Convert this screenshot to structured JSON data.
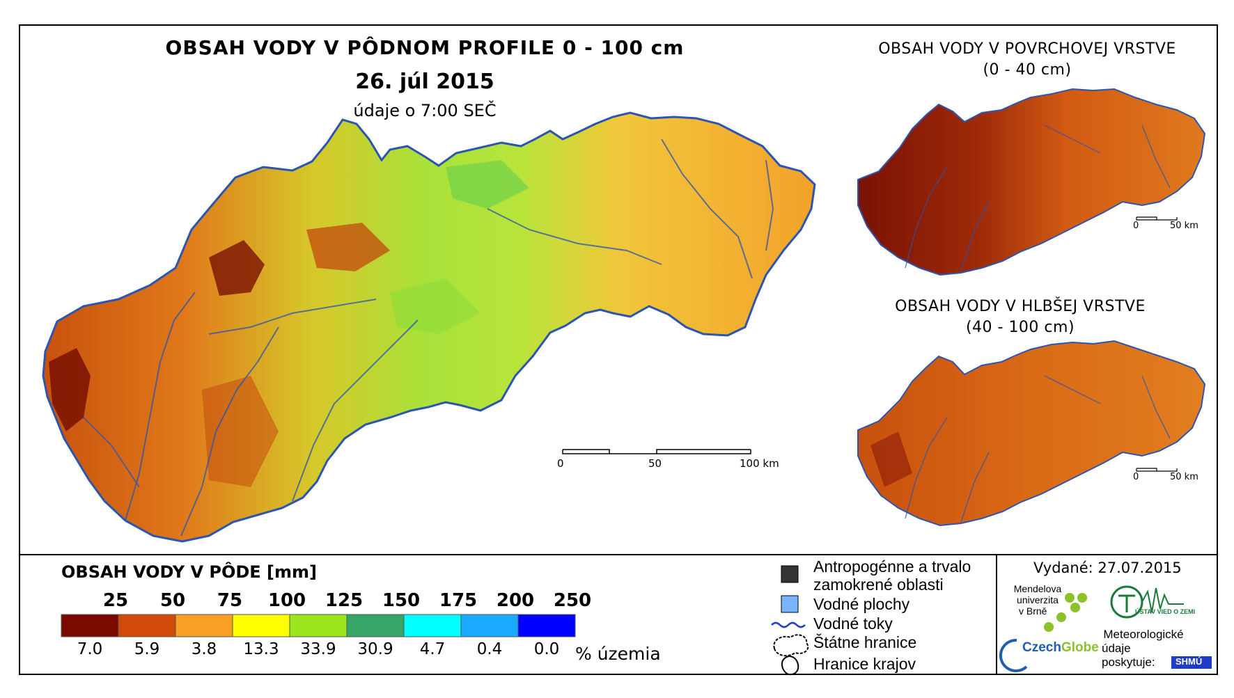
{
  "main_map": {
    "title": "OBSAH VODY V PÔDNOM PROFILE 0 - 100 cm",
    "date": "26. júl 2015",
    "time": "údaje o 7:00 SEČ",
    "scale": {
      "labels": [
        "0",
        "50",
        "100 km"
      ]
    }
  },
  "surface_map": {
    "title_line1": "OBSAH VODY V POVRCHOVEJ VRSTVE",
    "title_line2": "(0 - 40 cm)",
    "scale": {
      "labels": [
        "0",
        "50 km"
      ]
    }
  },
  "deep_map": {
    "title_line1": "OBSAH VODY V HLBŠEJ VRSTVE",
    "title_line2": "(40 - 100 cm)",
    "scale": {
      "labels": [
        "0",
        "50 km"
      ]
    }
  },
  "legend": {
    "title": "OBSAH VODY V PÔDE [mm]",
    "class_labels": [
      "25",
      "50",
      "75",
      "100",
      "125",
      "150",
      "175",
      "200",
      "250"
    ],
    "colors": [
      "#7a0a00",
      "#d24a0a",
      "#f7a024",
      "#ffff00",
      "#9be61e",
      "#37a567",
      "#00ffff",
      "#19aaff",
      "#0000ff"
    ],
    "percentages": [
      "7.0",
      "5.9",
      "3.8",
      "13.3",
      "33.9",
      "30.9",
      "4.7",
      "0.4",
      "0.0"
    ],
    "percent_unit": "% územia"
  },
  "symbols": {
    "anthropogenic_line1": "Antropogénne a trvalo",
    "anthropogenic_line2": "zamokrené oblasti",
    "water_areas": "Vodné plochy",
    "rivers": "Vodné toky",
    "state_border": "Štátne hranice",
    "region_border": "Hranice krajov"
  },
  "issued": "Vydané: 27.07.2015",
  "institutions": {
    "mendel_line1": "Mendelova",
    "mendel_line2": "univerzita",
    "mendel_line3": "v Brně",
    "czechglobe_a": "Czech",
    "czechglobe_b": "Globe",
    "uvz": "ÚSTAV VIED O ZEMI",
    "meteo_line1": "Meteorologické",
    "meteo_line2": "údaje",
    "meteo_line3": "poskytuje:",
    "shmu": "SHMÚ"
  }
}
